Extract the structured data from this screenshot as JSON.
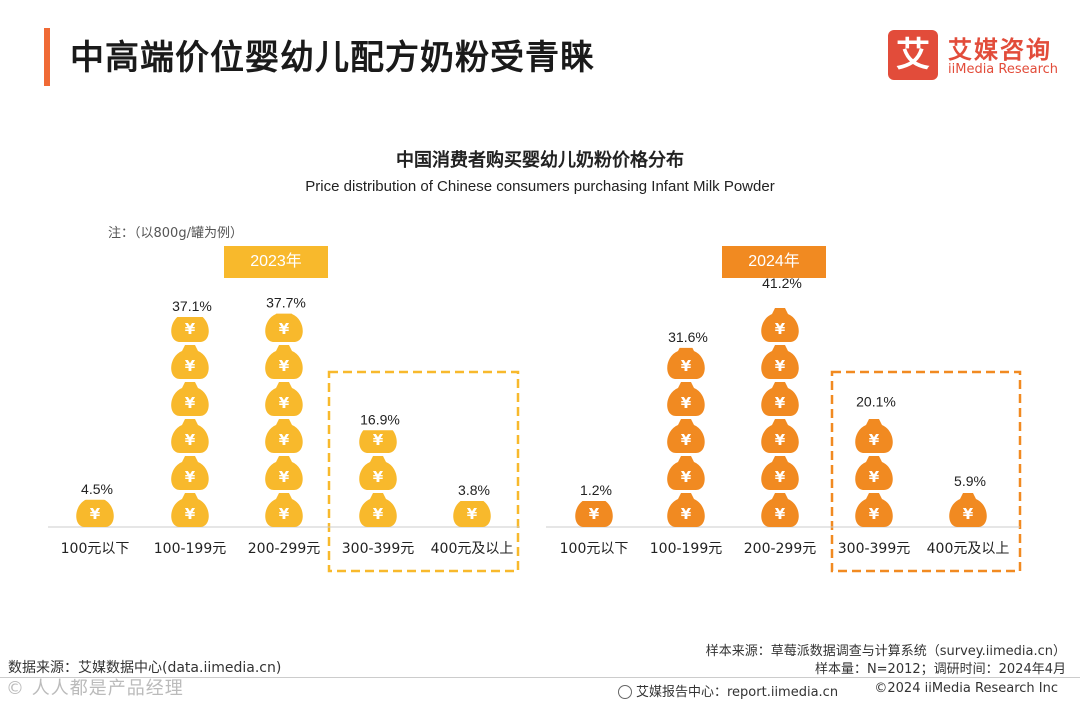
{
  "header": {
    "title": "中高端价位婴幼儿配方奶粉受青睐",
    "logo_mark": "艾",
    "logo_cn": "艾媒咨询",
    "logo_en": "iiMedia Research"
  },
  "chart_data": {
    "type": "bar",
    "title": "中国消费者购买婴幼儿奶粉价格分布",
    "subtitle": "Price distribution of Chinese consumers purchasing Infant Milk Powder",
    "note": "注：（以800g/罐为例）",
    "unit": "%",
    "categories": [
      "100元以下",
      "100-199元",
      "200-299元",
      "300-399元",
      "400元及以上"
    ],
    "highlighted_categories": [
      "300-399元",
      "400元及以上"
    ],
    "series": [
      {
        "name": "2023年",
        "values": [
          4.5,
          37.1,
          37.7,
          16.9,
          3.8
        ],
        "labels": [
          "4.5%",
          "37.1%",
          "37.7%",
          "16.9%",
          "3.8%"
        ],
        "color": "#f8b92c"
      },
      {
        "name": "2024年",
        "values": [
          1.2,
          31.6,
          41.2,
          20.1,
          5.9
        ],
        "labels": [
          "1.2%",
          "31.6%",
          "41.2%",
          "20.1%",
          "5.9%"
        ],
        "color": "#f18a21"
      }
    ],
    "icon": "money-bag-icon",
    "icon_glyph": "¥"
  },
  "footer": {
    "data_source": "数据来源：艾媒数据中心(data.iimedia.cn)",
    "sample_source": "样本来源：草莓派数据调查与计算系统（survey.iimedia.cn）",
    "sample_info": "样本量：N=2012；调研时间：2024年4月",
    "report_center": "艾媒报告中心：report.iimedia.cn",
    "copyright": "©2024  iiMedia Research  Inc",
    "watermark": "©  人人都是产品经理"
  }
}
